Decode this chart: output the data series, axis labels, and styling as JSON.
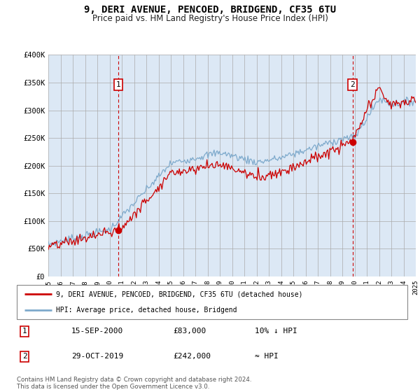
{
  "title": "9, DERI AVENUE, PENCOED, BRIDGEND, CF35 6TU",
  "subtitle": "Price paid vs. HM Land Registry's House Price Index (HPI)",
  "legend_label_red": "9, DERI AVENUE, PENCOED, BRIDGEND, CF35 6TU (detached house)",
  "legend_label_blue": "HPI: Average price, detached house, Bridgend",
  "annotation1_date": "15-SEP-2000",
  "annotation1_price": "£83,000",
  "annotation1_hpi": "10% ↓ HPI",
  "annotation2_date": "29-OCT-2019",
  "annotation2_price": "£242,000",
  "annotation2_hpi": "≈ HPI",
  "footer": "Contains HM Land Registry data © Crown copyright and database right 2024.\nThis data is licensed under the Open Government Licence v3.0.",
  "xmin": 1995,
  "xmax": 2025,
  "ymin": 0,
  "ymax": 400000,
  "yticks": [
    0,
    50000,
    100000,
    150000,
    200000,
    250000,
    300000,
    350000,
    400000
  ],
  "ytick_labels": [
    "£0",
    "£50K",
    "£100K",
    "£150K",
    "£200K",
    "£250K",
    "£300K",
    "£350K",
    "£400K"
  ],
  "xticks": [
    1995,
    1996,
    1997,
    1998,
    1999,
    2000,
    2001,
    2002,
    2003,
    2004,
    2005,
    2006,
    2007,
    2008,
    2009,
    2010,
    2011,
    2012,
    2013,
    2014,
    2015,
    2016,
    2017,
    2018,
    2019,
    2020,
    2021,
    2022,
    2023,
    2024,
    2025
  ],
  "transaction1_x": 2000.71,
  "transaction1_y": 83000,
  "transaction2_x": 2019.83,
  "transaction2_y": 242000,
  "color_red": "#cc0000",
  "color_blue": "#7eaacc",
  "color_dashed": "#cc0000",
  "background_color": "#dce8f5",
  "grid_color": "#aaaaaa"
}
